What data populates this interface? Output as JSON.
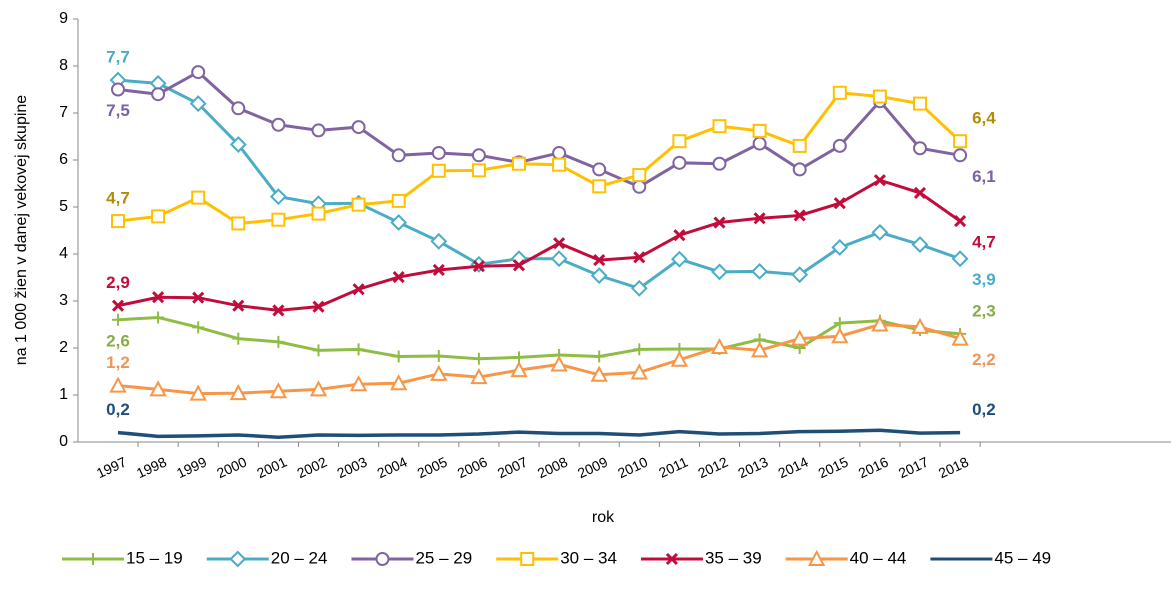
{
  "chart_data": {
    "type": "line",
    "x_label": "rok",
    "y_label": "na 1 000 žien v danej vekovej skupine",
    "categories": [
      "1997",
      "1998",
      "1999",
      "2000",
      "2001",
      "2002",
      "2003",
      "2004",
      "2005",
      "2006",
      "2007",
      "2008",
      "2009",
      "2010",
      "2011",
      "2012",
      "2013",
      "2014",
      "2015",
      "2016",
      "2017",
      "2018"
    ],
    "ylim": [
      0,
      9
    ],
    "yticks": [
      0,
      1,
      2,
      3,
      4,
      5,
      6,
      7,
      8,
      9
    ],
    "grid": false,
    "legend": "bottom",
    "series": [
      {
        "name": "15 – 19",
        "color": "#8fbc45",
        "label_color": "#86ad48",
        "marker": "plus",
        "values": [
          2.6,
          2.65,
          2.44,
          2.2,
          2.13,
          1.95,
          1.97,
          1.82,
          1.83,
          1.77,
          1.8,
          1.85,
          1.82,
          1.97,
          1.98,
          1.98,
          2.18,
          2.0,
          2.53,
          2.58,
          2.38,
          2.3
        ],
        "value_labels": [
          "2,6",
          null,
          null,
          null,
          null,
          null,
          null,
          null,
          null,
          null,
          null,
          null,
          null,
          null,
          null,
          null,
          null,
          null,
          null,
          null,
          null,
          "2,3"
        ]
      },
      {
        "name": "20 – 24",
        "color": "#4bacc6",
        "label_color": "#4bacc6",
        "marker": "diamond",
        "values": [
          7.7,
          7.63,
          7.2,
          6.33,
          5.22,
          5.07,
          5.08,
          4.67,
          4.27,
          3.78,
          3.9,
          3.9,
          3.54,
          3.27,
          3.89,
          3.62,
          3.63,
          3.56,
          4.14,
          4.46,
          4.2,
          3.9
        ],
        "value_labels": [
          "7,7",
          null,
          null,
          null,
          null,
          null,
          null,
          null,
          null,
          null,
          null,
          null,
          null,
          null,
          null,
          null,
          null,
          null,
          null,
          null,
          null,
          "3,9"
        ]
      },
      {
        "name": "25 – 29",
        "color": "#8064a2",
        "label_color": "#7b62a3",
        "marker": "circle",
        "values": [
          7.5,
          7.4,
          7.87,
          7.1,
          6.75,
          6.63,
          6.7,
          6.1,
          6.15,
          6.1,
          5.95,
          6.15,
          5.8,
          5.43,
          5.94,
          5.92,
          6.35,
          5.8,
          6.3,
          7.25,
          6.25,
          6.1
        ],
        "value_labels": [
          "7,5",
          null,
          null,
          null,
          null,
          null,
          null,
          null,
          null,
          null,
          null,
          null,
          null,
          null,
          null,
          null,
          null,
          null,
          null,
          null,
          null,
          "6,1"
        ]
      },
      {
        "name": "30 – 34",
        "color": "#ffc000",
        "label_color": "#b08c0a",
        "marker": "square",
        "values": [
          4.7,
          4.8,
          5.2,
          4.65,
          4.73,
          4.86,
          5.05,
          5.13,
          5.77,
          5.78,
          5.92,
          5.9,
          5.44,
          5.68,
          6.4,
          6.72,
          6.62,
          6.3,
          7.43,
          7.35,
          7.2,
          6.4
        ],
        "value_labels": [
          "4,7",
          null,
          null,
          null,
          null,
          null,
          null,
          null,
          null,
          null,
          null,
          null,
          null,
          null,
          null,
          null,
          null,
          null,
          null,
          null,
          null,
          "6,4"
        ]
      },
      {
        "name": "35 – 39",
        "color": "#c00d3c",
        "label_color": "#c00d3c",
        "marker": "x",
        "values": [
          2.9,
          3.08,
          3.07,
          2.9,
          2.8,
          2.88,
          3.25,
          3.51,
          3.66,
          3.74,
          3.76,
          4.23,
          3.87,
          3.93,
          4.4,
          4.67,
          4.76,
          4.82,
          5.08,
          5.57,
          5.3,
          4.7
        ],
        "value_labels": [
          "2,9",
          null,
          null,
          null,
          null,
          null,
          null,
          null,
          null,
          null,
          null,
          null,
          null,
          null,
          null,
          null,
          null,
          null,
          null,
          null,
          null,
          "4,7"
        ]
      },
      {
        "name": "40 – 44",
        "color": "#f79646",
        "label_color": "#f0955a",
        "marker": "triangle",
        "values": [
          1.2,
          1.12,
          1.03,
          1.04,
          1.08,
          1.12,
          1.23,
          1.25,
          1.45,
          1.38,
          1.53,
          1.65,
          1.43,
          1.48,
          1.75,
          2.02,
          1.95,
          2.2,
          2.25,
          2.5,
          2.45,
          2.2
        ],
        "value_labels": [
          "1,2",
          null,
          null,
          null,
          null,
          null,
          null,
          null,
          null,
          null,
          null,
          null,
          null,
          null,
          null,
          null,
          null,
          null,
          null,
          null,
          null,
          "2,2"
        ]
      },
      {
        "name": "45 – 49",
        "color": "#1f4e79",
        "label_color": "#1f4e79",
        "marker": null,
        "values": [
          0.2,
          0.12,
          0.13,
          0.15,
          0.1,
          0.15,
          0.14,
          0.15,
          0.15,
          0.17,
          0.21,
          0.18,
          0.18,
          0.15,
          0.22,
          0.17,
          0.18,
          0.22,
          0.23,
          0.25,
          0.19,
          0.2
        ],
        "value_labels": [
          "0,2",
          null,
          null,
          null,
          null,
          null,
          null,
          null,
          null,
          null,
          null,
          null,
          null,
          null,
          null,
          null,
          null,
          null,
          null,
          null,
          null,
          "0,2"
        ]
      }
    ]
  }
}
